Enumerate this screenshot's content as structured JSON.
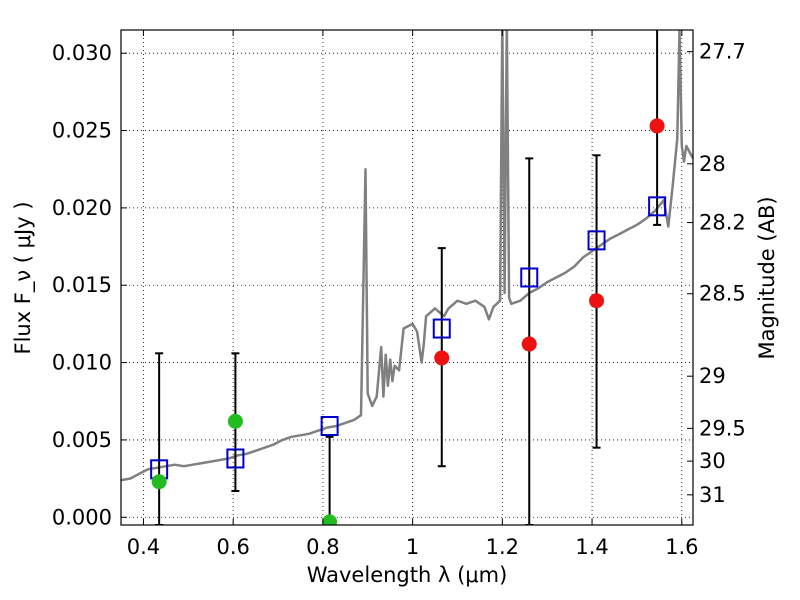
{
  "chart_data": {
    "type": "scatter",
    "xlabel": "Wavelength  λ (μm)",
    "ylabel": "Flux  F_ν  ( μJy )",
    "y2label": "Magnitude (AB)",
    "xlim": [
      0.35,
      1.625
    ],
    "ylim": [
      -0.0005,
      0.0315
    ],
    "grid": true,
    "x_ticks": [
      0.4,
      0.6,
      0.8,
      1.0,
      1.2,
      1.4,
      1.6
    ],
    "x_tick_labels": [
      "0.4",
      "0.6",
      "0.8",
      "1",
      "1.2",
      "1.4",
      "1.6"
    ],
    "y_ticks": [
      0.0,
      0.005,
      0.01,
      0.015,
      0.02,
      0.025,
      0.03
    ],
    "y_tick_labels": [
      "0.000",
      "0.005",
      "0.010",
      "0.015",
      "0.020",
      "0.025",
      "0.030"
    ],
    "mag_ticks": [
      {
        "label": "27.7",
        "flux": 0.0301
      },
      {
        "label": "28",
        "flux": 0.02285
      },
      {
        "label": "28.2",
        "flux": 0.01905
      },
      {
        "label": "28.5",
        "flux": 0.01445
      },
      {
        "label": "29",
        "flux": 0.00912
      },
      {
        "label": "29.5",
        "flux": 0.00575
      },
      {
        "label": "30",
        "flux": 0.00363
      },
      {
        "label": "31",
        "flux": 0.00145
      }
    ],
    "model_spectrum": {
      "color": "#808080",
      "points": [
        [
          0.35,
          0.0024
        ],
        [
          0.37,
          0.0025
        ],
        [
          0.39,
          0.0028
        ],
        [
          0.41,
          0.0031
        ],
        [
          0.43,
          0.0032
        ],
        [
          0.45,
          0.0033
        ],
        [
          0.47,
          0.0034
        ],
        [
          0.49,
          0.0033
        ],
        [
          0.51,
          0.0034
        ],
        [
          0.53,
          0.0035
        ],
        [
          0.55,
          0.0036
        ],
        [
          0.57,
          0.0037
        ],
        [
          0.59,
          0.0038
        ],
        [
          0.61,
          0.004
        ],
        [
          0.63,
          0.0041
        ],
        [
          0.65,
          0.0043
        ],
        [
          0.67,
          0.0045
        ],
        [
          0.69,
          0.0047
        ],
        [
          0.71,
          0.005
        ],
        [
          0.73,
          0.0052
        ],
        [
          0.75,
          0.0053
        ],
        [
          0.77,
          0.0054
        ],
        [
          0.79,
          0.0056
        ],
        [
          0.81,
          0.0058
        ],
        [
          0.83,
          0.0059
        ],
        [
          0.85,
          0.0061
        ],
        [
          0.87,
          0.0063
        ],
        [
          0.885,
          0.0066
        ],
        [
          0.895,
          0.0225
        ],
        [
          0.9,
          0.008
        ],
        [
          0.91,
          0.0072
        ],
        [
          0.92,
          0.0078
        ],
        [
          0.93,
          0.011
        ],
        [
          0.935,
          0.0078
        ],
        [
          0.94,
          0.0105
        ],
        [
          0.945,
          0.0085
        ],
        [
          0.95,
          0.0102
        ],
        [
          0.955,
          0.0088
        ],
        [
          0.96,
          0.0098
        ],
        [
          0.97,
          0.0095
        ],
        [
          0.98,
          0.0122
        ],
        [
          1.0,
          0.0125
        ],
        [
          1.01,
          0.012
        ],
        [
          1.02,
          0.01
        ],
        [
          1.025,
          0.0112
        ],
        [
          1.03,
          0.013
        ],
        [
          1.05,
          0.0135
        ],
        [
          1.07,
          0.013
        ],
        [
          1.08,
          0.0135
        ],
        [
          1.1,
          0.014
        ],
        [
          1.12,
          0.0138
        ],
        [
          1.14,
          0.014
        ],
        [
          1.16,
          0.0136
        ],
        [
          1.17,
          0.0128
        ],
        [
          1.18,
          0.0136
        ],
        [
          1.195,
          0.014
        ],
        [
          1.2,
          0.032
        ],
        [
          1.205,
          0.0145
        ],
        [
          1.21,
          0.032
        ],
        [
          1.215,
          0.0142
        ],
        [
          1.22,
          0.0138
        ],
        [
          1.24,
          0.014
        ],
        [
          1.26,
          0.0145
        ],
        [
          1.28,
          0.0148
        ],
        [
          1.3,
          0.0152
        ],
        [
          1.32,
          0.0155
        ],
        [
          1.34,
          0.0158
        ],
        [
          1.36,
          0.0162
        ],
        [
          1.38,
          0.0168
        ],
        [
          1.4,
          0.0172
        ],
        [
          1.42,
          0.0176
        ],
        [
          1.44,
          0.018
        ],
        [
          1.46,
          0.0183
        ],
        [
          1.48,
          0.0186
        ],
        [
          1.5,
          0.0189
        ],
        [
          1.52,
          0.0193
        ],
        [
          1.54,
          0.0198
        ],
        [
          1.56,
          0.0205
        ],
        [
          1.57,
          0.0188
        ],
        [
          1.58,
          0.0215
        ],
        [
          1.59,
          0.0245
        ],
        [
          1.595,
          0.0315
        ],
        [
          1.6,
          0.024
        ],
        [
          1.605,
          0.023
        ],
        [
          1.61,
          0.024
        ],
        [
          1.625,
          0.0232
        ]
      ]
    },
    "model_points": {
      "marker": "open-square",
      "color": "#0000cc",
      "points": [
        [
          0.435,
          0.0031
        ],
        [
          0.605,
          0.0038
        ],
        [
          0.815,
          0.0059
        ],
        [
          1.065,
          0.0122
        ],
        [
          1.26,
          0.0155
        ],
        [
          1.41,
          0.0179
        ],
        [
          1.545,
          0.0201
        ]
      ]
    },
    "observations": [
      {
        "x": 0.435,
        "y": 0.0023,
        "err_low": -0.0005,
        "err_high": 0.0106,
        "color": "#22bb22"
      },
      {
        "x": 0.605,
        "y": 0.0062,
        "err_low": 0.0017,
        "err_high": 0.0106,
        "color": "#22bb22"
      },
      {
        "x": 0.815,
        "y": -0.0003,
        "err_low": -0.0005,
        "err_high": 0.0052,
        "color": "#22bb22"
      },
      {
        "x": 1.065,
        "y": 0.0103,
        "err_low": 0.0033,
        "err_high": 0.0174,
        "color": "#ee1111"
      },
      {
        "x": 1.26,
        "y": 0.0112,
        "err_low": -0.0005,
        "err_high": 0.0232,
        "color": "#ee1111"
      },
      {
        "x": 1.41,
        "y": 0.014,
        "err_low": 0.0045,
        "err_high": 0.0234,
        "color": "#ee1111"
      },
      {
        "x": 1.545,
        "y": 0.0253,
        "err_low": 0.0189,
        "err_high": 0.032,
        "color": "#ee1111"
      }
    ]
  }
}
